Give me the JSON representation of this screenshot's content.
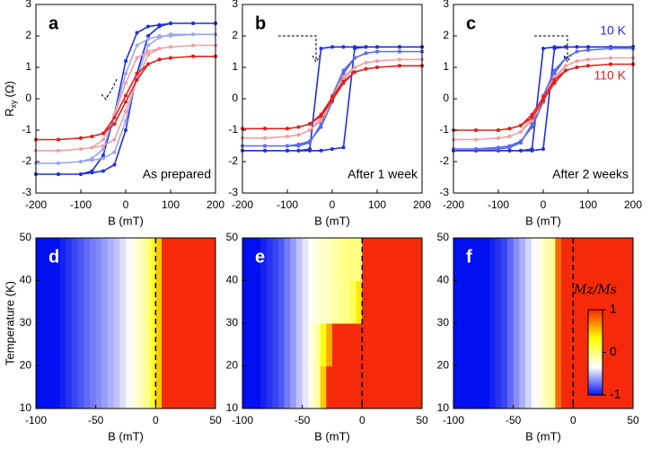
{
  "chart_data": [
    {
      "type": "line",
      "panel": "a",
      "annotation": "As prepared",
      "xlabel": "B (mT)",
      "ylabel": "R",
      "ylabel_sub": "xy",
      "ylabel_unit": "(Ω)",
      "x": [
        200,
        150,
        100,
        75,
        50,
        25,
        0,
        -25,
        -50,
        -75,
        -100,
        -150,
        -200,
        -150,
        -100,
        -75,
        -50,
        -25,
        0,
        25,
        50,
        75,
        100,
        150,
        200
      ],
      "series": [
        {
          "color": "#1f2fe0",
          "values": [
            2.4,
            2.4,
            2.4,
            2.35,
            2.3,
            2.1,
            1.2,
            -0.5,
            -1.8,
            -2.3,
            -2.4,
            -2.4,
            -2.4,
            -2.4,
            -2.4,
            -2.35,
            -2.3,
            -2.1,
            -1.0,
            0.8,
            2.0,
            2.3,
            2.4,
            2.4,
            2.4
          ]
        },
        {
          "color": "#9aa6ee",
          "values": [
            2.05,
            2.05,
            2.0,
            2.0,
            1.9,
            1.7,
            0.8,
            -0.5,
            -1.6,
            -1.9,
            -2.0,
            -2.05,
            -2.05,
            -2.05,
            -2.0,
            -1.95,
            -1.9,
            -1.7,
            -0.7,
            0.7,
            1.7,
            1.95,
            2.05,
            2.05,
            2.05
          ]
        },
        {
          "color": "#f0a0a4",
          "values": [
            1.7,
            1.7,
            1.65,
            1.6,
            1.5,
            1.3,
            0.5,
            -0.5,
            -1.3,
            -1.55,
            -1.6,
            -1.65,
            -1.65,
            -1.65,
            -1.6,
            -1.55,
            -1.5,
            -1.3,
            -0.4,
            0.6,
            1.4,
            1.6,
            1.65,
            1.7,
            1.7
          ]
        },
        {
          "color": "#e0201c",
          "values": [
            1.35,
            1.35,
            1.3,
            1.25,
            1.1,
            0.8,
            0.1,
            -0.6,
            -1.1,
            -1.2,
            -1.25,
            -1.3,
            -1.3,
            -1.3,
            -1.25,
            -1.2,
            -1.1,
            -0.8,
            -0.1,
            0.6,
            1.1,
            1.25,
            1.3,
            1.35,
            1.35
          ]
        }
      ],
      "xlim": [
        -200,
        200
      ],
      "ylim": [
        -3,
        3
      ],
      "xticks": [
        -200,
        -100,
        0,
        100,
        200
      ],
      "yticks": [
        -3,
        -2,
        -1,
        0,
        1,
        2,
        3
      ]
    },
    {
      "type": "line",
      "panel": "b",
      "annotation": "After 1 week",
      "xlabel": "B (mT)",
      "x": [
        200,
        150,
        100,
        75,
        50,
        25,
        0,
        -25,
        -50,
        -75,
        -100,
        -150,
        -200,
        -150,
        -100,
        -75,
        -50,
        -25,
        0,
        25,
        50,
        75,
        100,
        150,
        200
      ],
      "series": [
        {
          "color": "#1f2fe0",
          "values": [
            1.65,
            1.65,
            1.65,
            1.65,
            1.65,
            1.65,
            1.65,
            1.6,
            -1.6,
            -1.65,
            -1.65,
            -1.65,
            -1.65,
            -1.65,
            -1.65,
            -1.65,
            -1.65,
            -1.65,
            -1.6,
            -1.55,
            1.6,
            1.65,
            1.65,
            1.65,
            1.65
          ]
        },
        {
          "color": "#5a6ae6",
          "values": [
            1.5,
            1.5,
            1.5,
            1.45,
            1.3,
            0.9,
            0.1,
            -0.8,
            -1.4,
            -1.5,
            -1.5,
            -1.5,
            -1.5,
            -1.5,
            -1.5,
            -1.45,
            -1.35,
            -0.9,
            -0.1,
            0.8,
            1.3,
            1.45,
            1.5,
            1.5,
            1.5
          ]
        },
        {
          "color": "#f0a0a4",
          "values": [
            1.25,
            1.25,
            1.2,
            1.15,
            1.0,
            0.7,
            0.05,
            -0.6,
            -1.0,
            -1.15,
            -1.2,
            -1.25,
            -1.25,
            -1.25,
            -1.2,
            -1.15,
            -1.0,
            -0.7,
            -0.05,
            0.6,
            1.0,
            1.15,
            1.2,
            1.25,
            1.25
          ]
        },
        {
          "color": "#e0201c",
          "values": [
            1.05,
            1.05,
            1.0,
            0.95,
            0.85,
            0.55,
            0.05,
            -0.5,
            -0.8,
            -0.9,
            -0.95,
            -0.95,
            -0.95,
            -0.95,
            -0.95,
            -0.9,
            -0.8,
            -0.55,
            -0.05,
            0.5,
            0.85,
            0.95,
            1.0,
            1.05,
            1.05
          ]
        }
      ],
      "xlim": [
        -200,
        200
      ],
      "ylim": [
        -3,
        3
      ],
      "xticks": [
        -200,
        -100,
        0,
        100,
        200
      ],
      "yticks": [
        -3,
        -2,
        -1,
        0,
        1,
        2,
        3
      ]
    },
    {
      "type": "line",
      "panel": "c",
      "annotation": "After 2 weeks",
      "xlabel": "B (mT)",
      "x": [
        200,
        150,
        100,
        75,
        50,
        25,
        0,
        -25,
        -50,
        -75,
        -100,
        -150,
        -200,
        -150,
        -100,
        -75,
        -50,
        -25,
        0,
        25,
        50,
        75,
        100,
        150,
        200
      ],
      "series": [
        {
          "name": "10 K",
          "color": "#1f2fe0",
          "values": [
            1.65,
            1.65,
            1.65,
            1.65,
            1.65,
            1.65,
            1.6,
            -1.6,
            -1.65,
            -1.65,
            -1.65,
            -1.65,
            -1.65,
            -1.65,
            -1.65,
            -1.65,
            -1.65,
            -1.65,
            -1.6,
            1.6,
            1.65,
            1.65,
            1.65,
            1.65,
            1.65
          ]
        },
        {
          "color": "#5a6ae6",
          "values": [
            1.6,
            1.6,
            1.55,
            1.5,
            1.3,
            0.9,
            0.1,
            -0.8,
            -1.4,
            -1.55,
            -1.6,
            -1.6,
            -1.6,
            -1.6,
            -1.55,
            -1.5,
            -1.35,
            -0.9,
            -0.1,
            0.8,
            1.3,
            1.5,
            1.55,
            1.6,
            1.6
          ]
        },
        {
          "color": "#f0a0a4",
          "values": [
            1.3,
            1.3,
            1.25,
            1.2,
            1.05,
            0.7,
            0.05,
            -0.6,
            -1.05,
            -1.2,
            -1.25,
            -1.3,
            -1.3,
            -1.3,
            -1.25,
            -1.2,
            -1.05,
            -0.7,
            -0.05,
            0.6,
            1.05,
            1.2,
            1.25,
            1.3,
            1.3
          ]
        },
        {
          "name": "110 K",
          "color": "#e0201c",
          "values": [
            1.1,
            1.1,
            1.05,
            1.0,
            0.9,
            0.6,
            0.05,
            -0.5,
            -0.85,
            -0.95,
            -1.0,
            -1.0,
            -1.0,
            -1.0,
            -1.0,
            -0.95,
            -0.85,
            -0.6,
            -0.05,
            0.5,
            0.9,
            1.0,
            1.05,
            1.1,
            1.1
          ]
        }
      ],
      "xlim": [
        -200,
        200
      ],
      "ylim": [
        -3,
        3
      ],
      "xticks": [
        -200,
        -100,
        0,
        100,
        200
      ],
      "yticks": [
        -3,
        -2,
        -1,
        0,
        1,
        2,
        3
      ]
    },
    {
      "type": "heatmap",
      "panel": "d",
      "xlabel": "B (mT)",
      "ylabel": "Temperature (K)",
      "vline": 0,
      "x_edges": [
        -100,
        -95,
        -90,
        -85,
        -80,
        -75,
        -70,
        -65,
        -60,
        -55,
        -50,
        -45,
        -40,
        -35,
        -30,
        -25,
        -20,
        -15,
        -10,
        -5,
        0,
        5,
        10,
        15,
        20,
        25,
        30,
        35,
        40,
        45,
        50
      ],
      "y_edges": [
        10,
        20,
        30,
        40,
        50
      ],
      "z": [
        [
          -1,
          -1,
          -1,
          -1,
          -0.95,
          -0.9,
          -0.85,
          -0.8,
          -0.75,
          -0.7,
          -0.65,
          -0.6,
          -0.55,
          -0.5,
          -0.42,
          -0.35,
          -0.25,
          -0.15,
          -0.05,
          0.2,
          0.5,
          1,
          1,
          1,
          1,
          1,
          1,
          1,
          1,
          1
        ],
        [
          -1,
          -1,
          -1,
          -1,
          -0.95,
          -0.9,
          -0.85,
          -0.8,
          -0.75,
          -0.7,
          -0.65,
          -0.6,
          -0.55,
          -0.5,
          -0.42,
          -0.35,
          -0.25,
          -0.15,
          -0.05,
          0.2,
          0.5,
          1,
          1,
          1,
          1,
          1,
          1,
          1,
          1,
          1
        ],
        [
          -1,
          -1,
          -1,
          -1,
          -0.95,
          -0.9,
          -0.85,
          -0.8,
          -0.75,
          -0.7,
          -0.65,
          -0.6,
          -0.55,
          -0.5,
          -0.42,
          -0.35,
          -0.25,
          -0.15,
          -0.05,
          0.2,
          0.5,
          1,
          1,
          1,
          1,
          1,
          1,
          1,
          1,
          1
        ],
        [
          -1,
          -1,
          -1,
          -1,
          -0.95,
          -0.9,
          -0.85,
          -0.8,
          -0.75,
          -0.7,
          -0.65,
          -0.6,
          -0.55,
          -0.5,
          -0.42,
          -0.35,
          -0.25,
          -0.15,
          -0.05,
          0.2,
          0.5,
          1,
          1,
          1,
          1,
          1,
          1,
          1,
          1,
          1
        ]
      ],
      "xlim": [
        -100,
        50
      ],
      "ylim": [
        10,
        50
      ],
      "xticks": [
        -100,
        -50,
        0,
        50
      ],
      "yticks": [
        10,
        20,
        30,
        40,
        50
      ]
    },
    {
      "type": "heatmap",
      "panel": "e",
      "xlabel": "B (mT)",
      "vline": 0,
      "x_edges": [
        -100,
        -95,
        -90,
        -85,
        -80,
        -75,
        -70,
        -65,
        -60,
        -55,
        -50,
        -45,
        -40,
        -35,
        -30,
        -25,
        -20,
        -15,
        -10,
        -5,
        0,
        5,
        10,
        15,
        20,
        25,
        30,
        35,
        40,
        45,
        50
      ],
      "y_edges": [
        10,
        20,
        30,
        40,
        50
      ],
      "z": [
        [
          -1,
          -1,
          -1,
          -0.95,
          -0.9,
          -0.85,
          -0.8,
          -0.7,
          -0.6,
          -0.5,
          -0.4,
          -0.25,
          -0.1,
          0.5,
          1,
          1,
          1,
          1,
          1,
          1,
          1,
          1,
          1,
          1,
          1,
          1,
          1,
          1,
          1,
          1
        ],
        [
          -1,
          -1,
          -1,
          -0.95,
          -0.9,
          -0.85,
          -0.8,
          -0.7,
          -0.6,
          -0.5,
          -0.4,
          -0.25,
          -0.1,
          0.3,
          0.6,
          1,
          1,
          1,
          1,
          1,
          1,
          1,
          1,
          1,
          1,
          1,
          1,
          1,
          1,
          1
        ],
        [
          -1,
          -1,
          -1,
          -0.95,
          -0.9,
          -0.85,
          -0.8,
          -0.7,
          -0.6,
          -0.5,
          -0.4,
          -0.3,
          -0.25,
          -0.2,
          -0.15,
          -0.1,
          -0.05,
          0,
          0.1,
          0.4,
          1,
          1,
          1,
          1,
          1,
          1,
          1,
          1,
          1,
          1
        ],
        [
          -1,
          -1,
          -1,
          -0.95,
          -0.9,
          -0.85,
          -0.8,
          -0.7,
          -0.6,
          -0.5,
          -0.4,
          -0.3,
          -0.25,
          -0.2,
          -0.15,
          -0.1,
          -0.05,
          0,
          0,
          0,
          1,
          1,
          1,
          1,
          1,
          1,
          1,
          1,
          1,
          1
        ]
      ],
      "xlim": [
        -100,
        50
      ],
      "ylim": [
        10,
        50
      ],
      "xticks": [
        -100,
        -50,
        0,
        50
      ],
      "yticks": [
        10,
        20,
        30,
        40,
        50
      ]
    },
    {
      "type": "heatmap",
      "panel": "f",
      "xlabel": "B (mT)",
      "vline": 0,
      "x_edges": [
        -100,
        -95,
        -90,
        -85,
        -80,
        -75,
        -70,
        -65,
        -60,
        -55,
        -50,
        -45,
        -40,
        -35,
        -30,
        -25,
        -20,
        -15,
        -10,
        -5,
        0,
        5,
        10,
        15,
        20,
        25,
        30,
        35,
        40,
        45,
        50
      ],
      "y_edges": [
        10,
        20,
        30,
        40,
        50
      ],
      "z": [
        [
          -1,
          -1,
          -1,
          -1,
          -1,
          -1,
          -0.95,
          -0.9,
          -0.85,
          -0.75,
          -0.65,
          -0.55,
          -0.45,
          -0.35,
          -0.25,
          -0.15,
          -0.05,
          0.8,
          1,
          1,
          1,
          1,
          1,
          1,
          1,
          1,
          1,
          1,
          1,
          1
        ],
        [
          -1,
          -1,
          -1,
          -1,
          -1,
          -1,
          -0.95,
          -0.9,
          -0.85,
          -0.75,
          -0.65,
          -0.55,
          -0.45,
          -0.35,
          -0.25,
          -0.15,
          -0.05,
          0.8,
          1,
          1,
          1,
          1,
          1,
          1,
          1,
          1,
          1,
          1,
          1,
          1
        ],
        [
          -1,
          -1,
          -1,
          -1,
          -1,
          -1,
          -0.95,
          -0.9,
          -0.85,
          -0.75,
          -0.65,
          -0.55,
          -0.45,
          -0.35,
          -0.25,
          -0.15,
          -0.05,
          0.8,
          1,
          1,
          1,
          1,
          1,
          1,
          1,
          1,
          1,
          1,
          1,
          1
        ],
        [
          -1,
          -1,
          -1,
          -1,
          -1,
          -1,
          -0.95,
          -0.9,
          -0.85,
          -0.75,
          -0.65,
          -0.55,
          -0.45,
          -0.35,
          -0.25,
          -0.15,
          -0.05,
          0.8,
          1,
          1,
          1,
          1,
          1,
          1,
          1,
          1,
          1,
          1,
          1,
          1
        ]
      ],
      "colorbar": {
        "label": "Mz/Ms",
        "lim": [
          -1,
          1
        ],
        "ticks": [
          -1,
          0,
          1
        ],
        "colors": [
          "#0010f0",
          "#ffffff",
          "#ffff00",
          "#f52a0a"
        ]
      },
      "xlim": [
        -100,
        50
      ],
      "ylim": [
        10,
        50
      ],
      "xticks": [
        -100,
        -50,
        0,
        50
      ],
      "yticks": [
        10,
        20,
        30,
        40,
        50
      ]
    }
  ]
}
